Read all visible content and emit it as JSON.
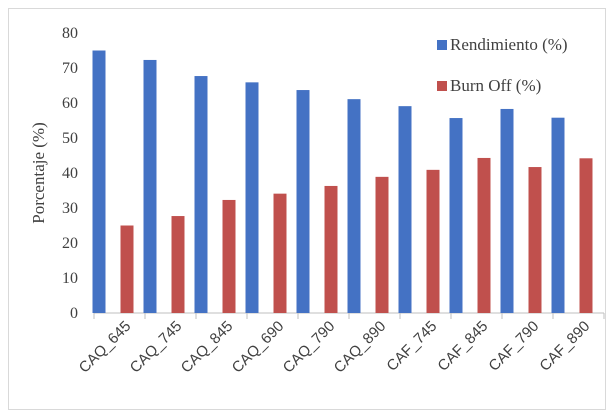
{
  "chart_data": {
    "type": "bar",
    "title": "",
    "xlabel": "",
    "ylabel": "Porcentaje (%)",
    "ylim": [
      0,
      80
    ],
    "yticks": [
      0,
      10,
      20,
      30,
      40,
      50,
      60,
      70,
      80
    ],
    "grid": false,
    "legend_position": "top-right",
    "categories": [
      "CAQ_645",
      "CAQ_745",
      "CAQ_845",
      "CAQ_690",
      "CAQ_790",
      "CAQ_890",
      "CAF_745",
      "CAF_845",
      "CAF_790",
      "CAF_890"
    ],
    "series": [
      {
        "name": "Rendimiento (%)",
        "color": "#4472c4",
        "values": [
          75.0,
          72.3,
          67.7,
          65.9,
          63.7,
          61.1,
          59.1,
          55.7,
          58.3,
          55.8
        ]
      },
      {
        "name": "Burn Off (%)",
        "color": "#c0504d",
        "values": [
          25.0,
          27.7,
          32.3,
          34.1,
          36.3,
          38.9,
          40.9,
          44.3,
          41.7,
          44.2
        ]
      }
    ]
  }
}
